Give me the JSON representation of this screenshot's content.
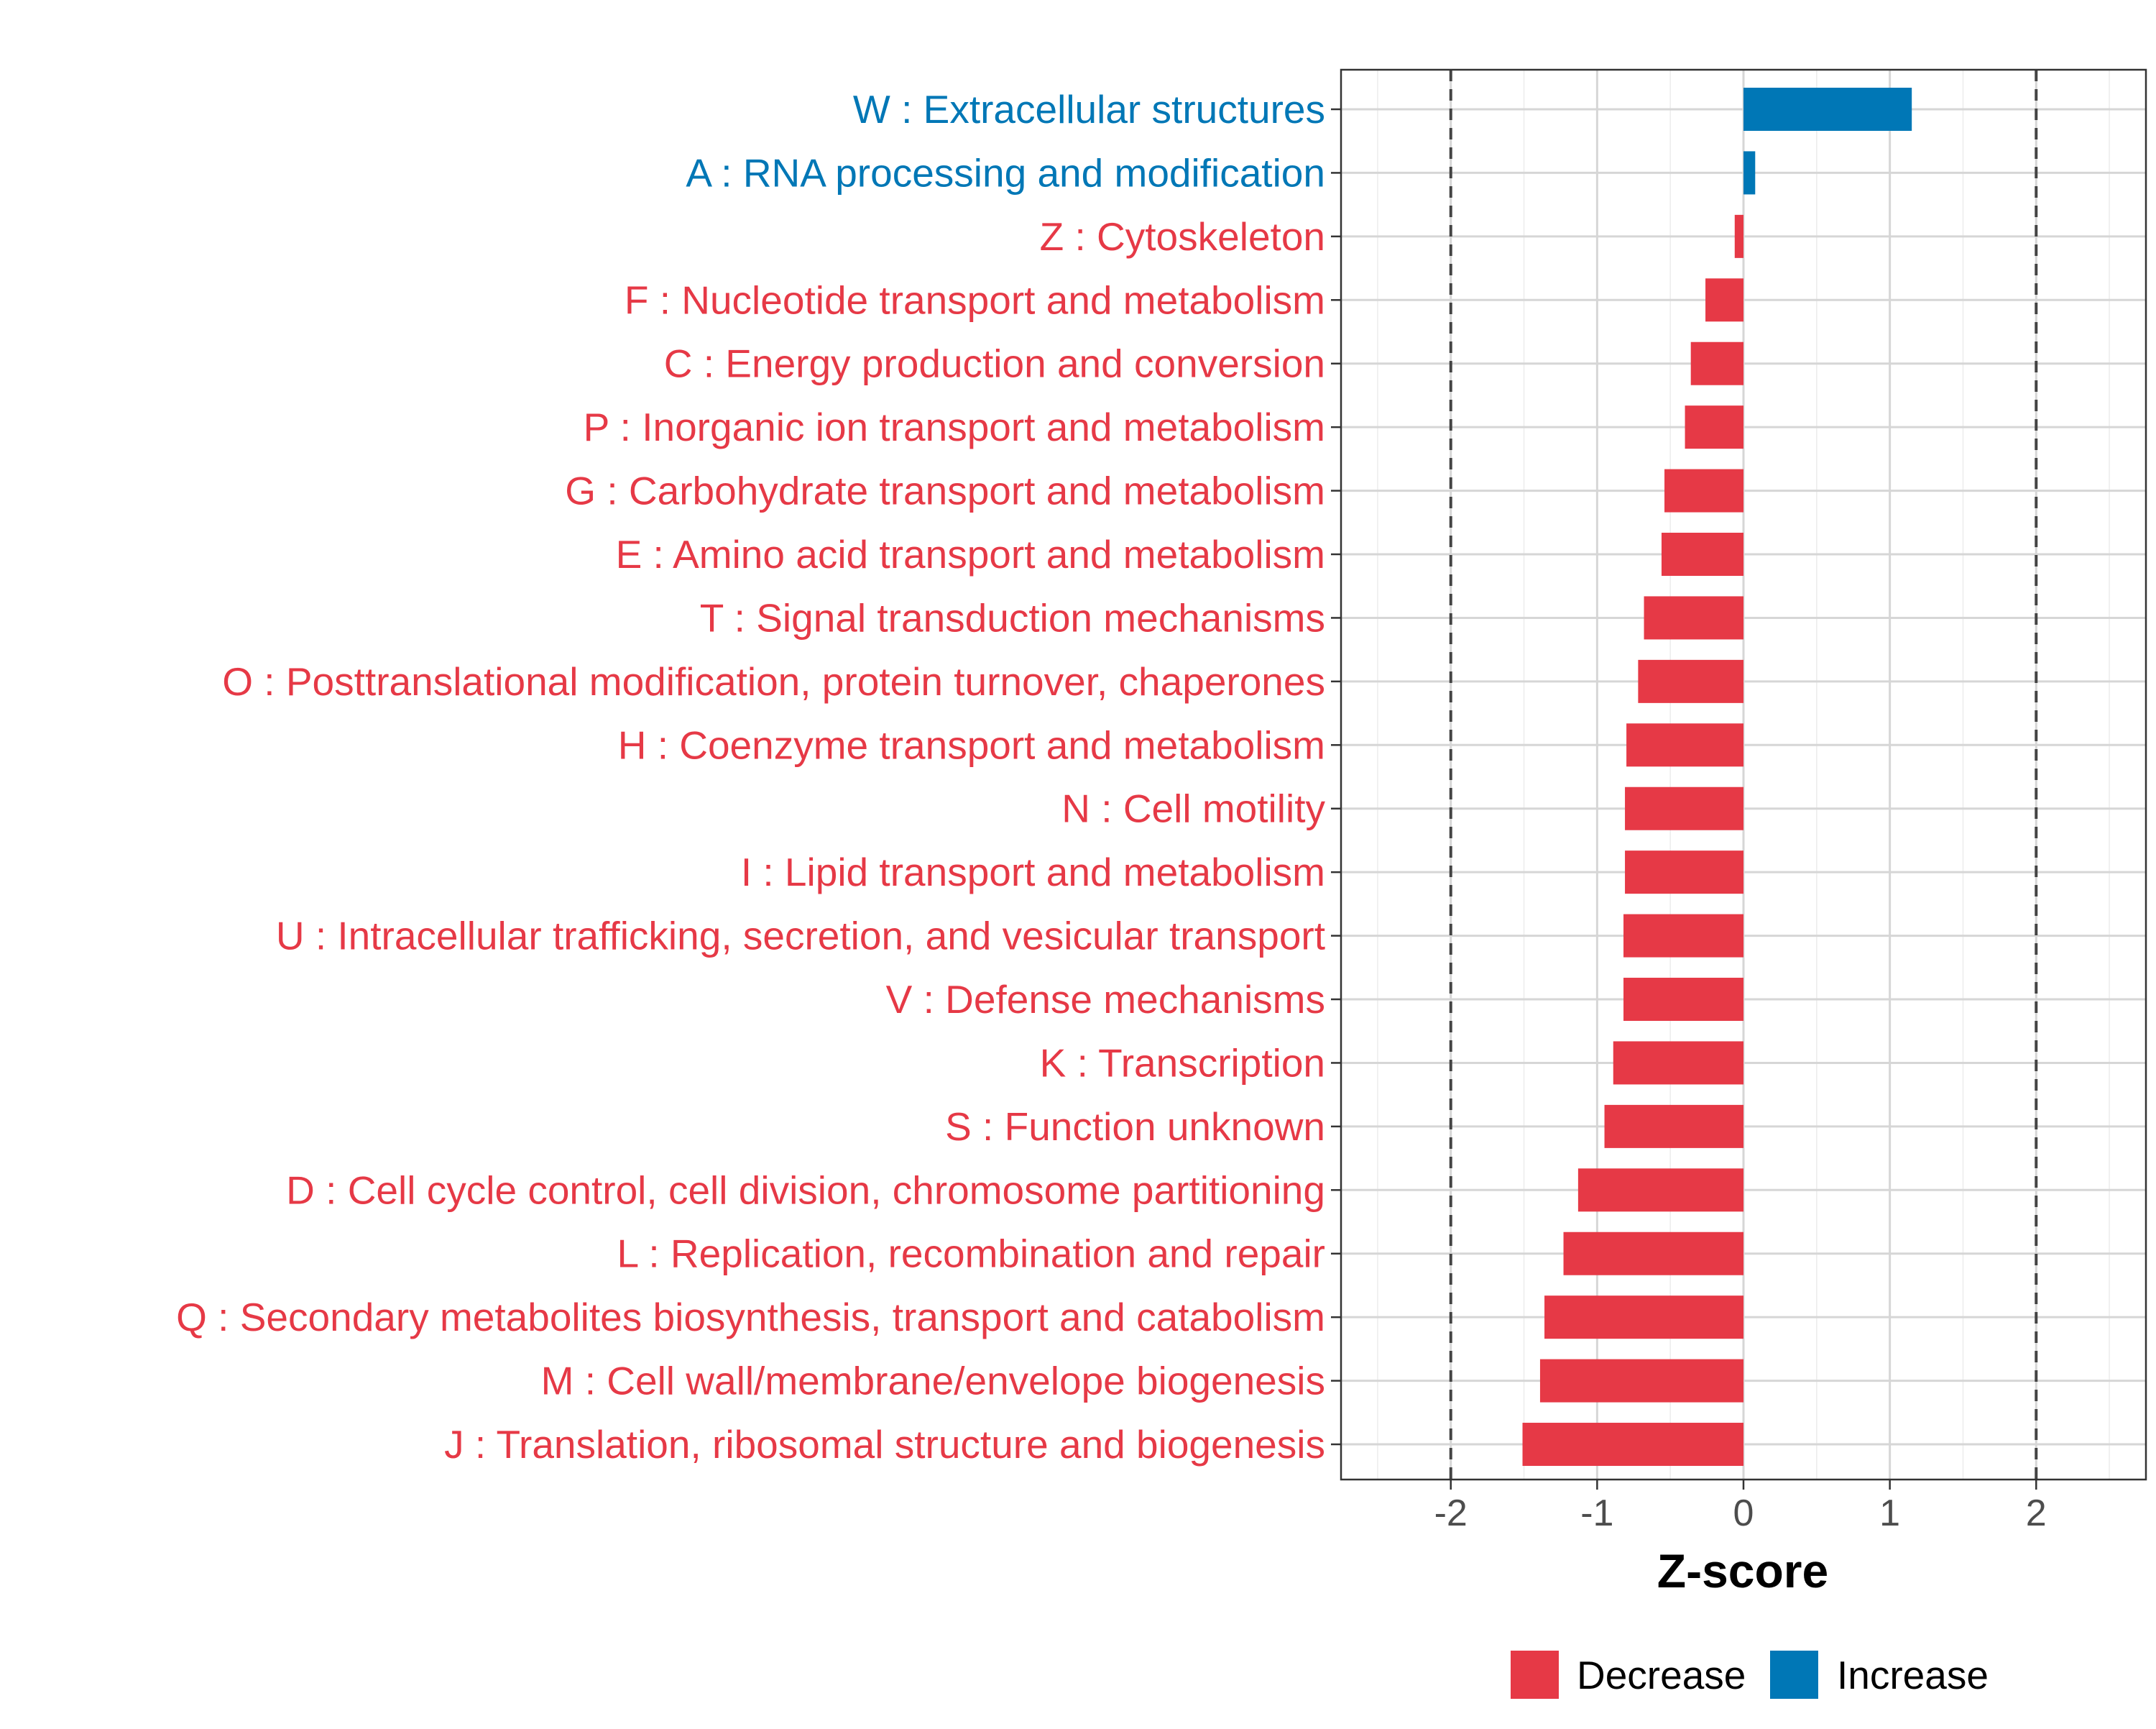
{
  "chart_data": {
    "type": "bar",
    "orientation": "horizontal",
    "xlabel": "Z-score",
    "ylabel": "",
    "xlim": [
      -2.75,
      2.75
    ],
    "xticks": [
      -2,
      -1,
      0,
      1,
      2
    ],
    "xtick_labels": [
      "-2",
      "-1",
      "0",
      "1",
      "2"
    ],
    "reference_lines": [
      -2,
      2
    ],
    "grid": true,
    "colors": {
      "Decrease": "#E63946",
      "Increase": "#0077B6"
    },
    "legend": {
      "placement": "bottom",
      "entries": [
        {
          "label": "Decrease",
          "color": "#E63946"
        },
        {
          "label": "Increase",
          "color": "#0077B6"
        }
      ]
    },
    "categories": [
      {
        "label": "W : Extracellular structures",
        "value": 1.15,
        "direction": "Increase"
      },
      {
        "label": "A : RNA processing and modification",
        "value": 0.08,
        "direction": "Increase"
      },
      {
        "label": "Z : Cytoskeleton",
        "value": -0.06,
        "direction": "Decrease"
      },
      {
        "label": "F : Nucleotide transport and metabolism",
        "value": -0.26,
        "direction": "Decrease"
      },
      {
        "label": "C : Energy production and conversion",
        "value": -0.36,
        "direction": "Decrease"
      },
      {
        "label": "P : Inorganic ion transport and metabolism",
        "value": -0.4,
        "direction": "Decrease"
      },
      {
        "label": "G : Carbohydrate transport and metabolism",
        "value": -0.54,
        "direction": "Decrease"
      },
      {
        "label": "E : Amino acid transport and metabolism",
        "value": -0.56,
        "direction": "Decrease"
      },
      {
        "label": "T : Signal transduction mechanisms",
        "value": -0.68,
        "direction": "Decrease"
      },
      {
        "label": "O : Posttranslational modification, protein turnover, chaperones",
        "value": -0.72,
        "direction": "Decrease"
      },
      {
        "label": "H : Coenzyme transport and metabolism",
        "value": -0.8,
        "direction": "Decrease"
      },
      {
        "label": "N : Cell motility",
        "value": -0.81,
        "direction": "Decrease"
      },
      {
        "label": "I : Lipid transport and metabolism",
        "value": -0.81,
        "direction": "Decrease"
      },
      {
        "label": "U : Intracellular trafficking, secretion, and vesicular transport",
        "value": -0.82,
        "direction": "Decrease"
      },
      {
        "label": "V : Defense mechanisms",
        "value": -0.82,
        "direction": "Decrease"
      },
      {
        "label": "K : Transcription",
        "value": -0.89,
        "direction": "Decrease"
      },
      {
        "label": "S : Function unknown",
        "value": -0.95,
        "direction": "Decrease"
      },
      {
        "label": "D : Cell cycle control, cell division, chromosome partitioning",
        "value": -1.13,
        "direction": "Decrease"
      },
      {
        "label": "L : Replication, recombination and repair",
        "value": -1.23,
        "direction": "Decrease"
      },
      {
        "label": "Q : Secondary metabolites biosynthesis, transport and catabolism",
        "value": -1.36,
        "direction": "Decrease"
      },
      {
        "label": "M : Cell wall/membrane/envelope biogenesis",
        "value": -1.39,
        "direction": "Decrease"
      },
      {
        "label": "J : Translation, ribosomal structure and biogenesis",
        "value": -1.51,
        "direction": "Decrease"
      }
    ]
  }
}
